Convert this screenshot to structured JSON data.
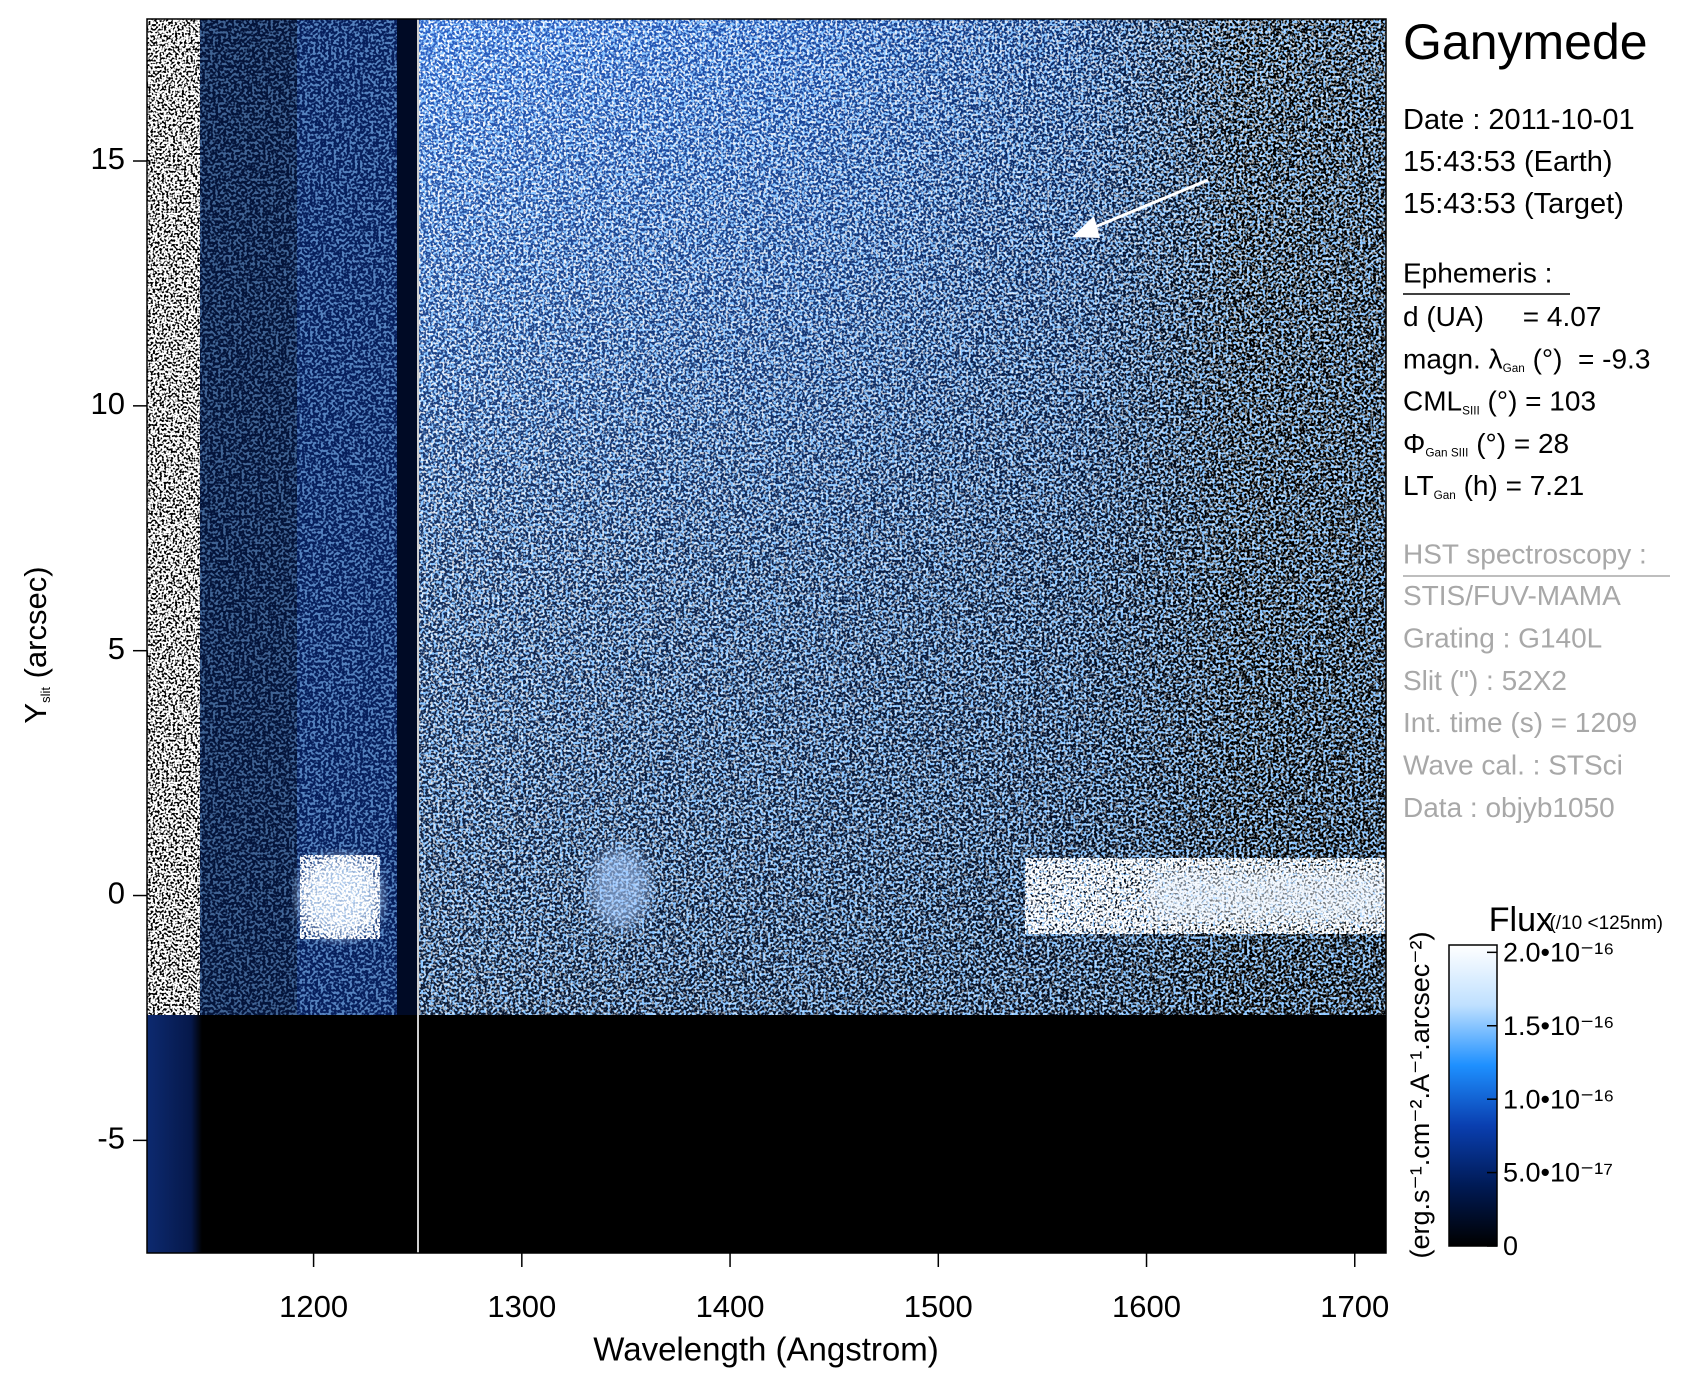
{
  "chart_data": {
    "type": "heatmap",
    "title": "Ganymede",
    "xlabel": "Wavelength (Angstrom)",
    "ylabel": {
      "main": "Y",
      "sub": "slit",
      "rest": " (arcsec)"
    },
    "xlim": [
      1120,
      1715
    ],
    "xticks": [
      1200,
      1300,
      1400,
      1500,
      1600,
      1700
    ],
    "ylim": [
      -7.3,
      17.9
    ],
    "yticks": [
      -5,
      0,
      5,
      10,
      15
    ],
    "colorbar": {
      "title": "Flux",
      "note": "(/10 <125nm)",
      "label": "(erg.s⁻¹.cm⁻².A⁻¹.arcsec⁻²)",
      "lim": [
        0,
        2.05e-16
      ],
      "ticks": [
        0,
        {
          "value": 5e-17,
          "label": "5.0•10⁻¹⁷"
        },
        {
          "value": 1e-16,
          "label": "1.0•10⁻¹⁶"
        },
        {
          "value": 1.5e-16,
          "label": "1.5•10⁻¹⁶"
        },
        {
          "value": 2e-16,
          "label": "2.0•10⁻¹⁶"
        }
      ],
      "colors": [
        "#000000",
        "#001a55",
        "#0a3fb0",
        "#1e90ff",
        "#bfe0ff",
        "#ffffff"
      ]
    },
    "info": {
      "date": [
        [
          "Date : 2011-10-01"
        ],
        [
          "15:43:53 (Earth)"
        ],
        [
          "15:43:53 (Target)"
        ]
      ],
      "ephemeris_title": "Ephemeris :",
      "ephemeris": [
        [
          "d (UA)     = 4.07"
        ],
        [
          "magn. λ",
          {
            "sub": "Gan"
          },
          " (°)  = -9.3"
        ],
        [
          "CML",
          {
            "sub": "SIII"
          },
          " (°) = 103"
        ],
        [
          "Φ",
          {
            "sub": "Gan SIII"
          },
          " (°) = 28"
        ],
        [
          "LT",
          {
            "sub": "Gan"
          },
          " (h) = 7.21"
        ]
      ],
      "hst_title": "HST spectroscopy :",
      "hst": [
        [
          "STIS/FUV-MAMA"
        ],
        [
          "Grating : G140L"
        ],
        [
          "Slit (\") : 52X2"
        ],
        [
          "Int. time (s) = 1209"
        ],
        [
          "Wave cal. : STSci"
        ],
        [
          "Data : objyb1050"
        ]
      ]
    }
  }
}
